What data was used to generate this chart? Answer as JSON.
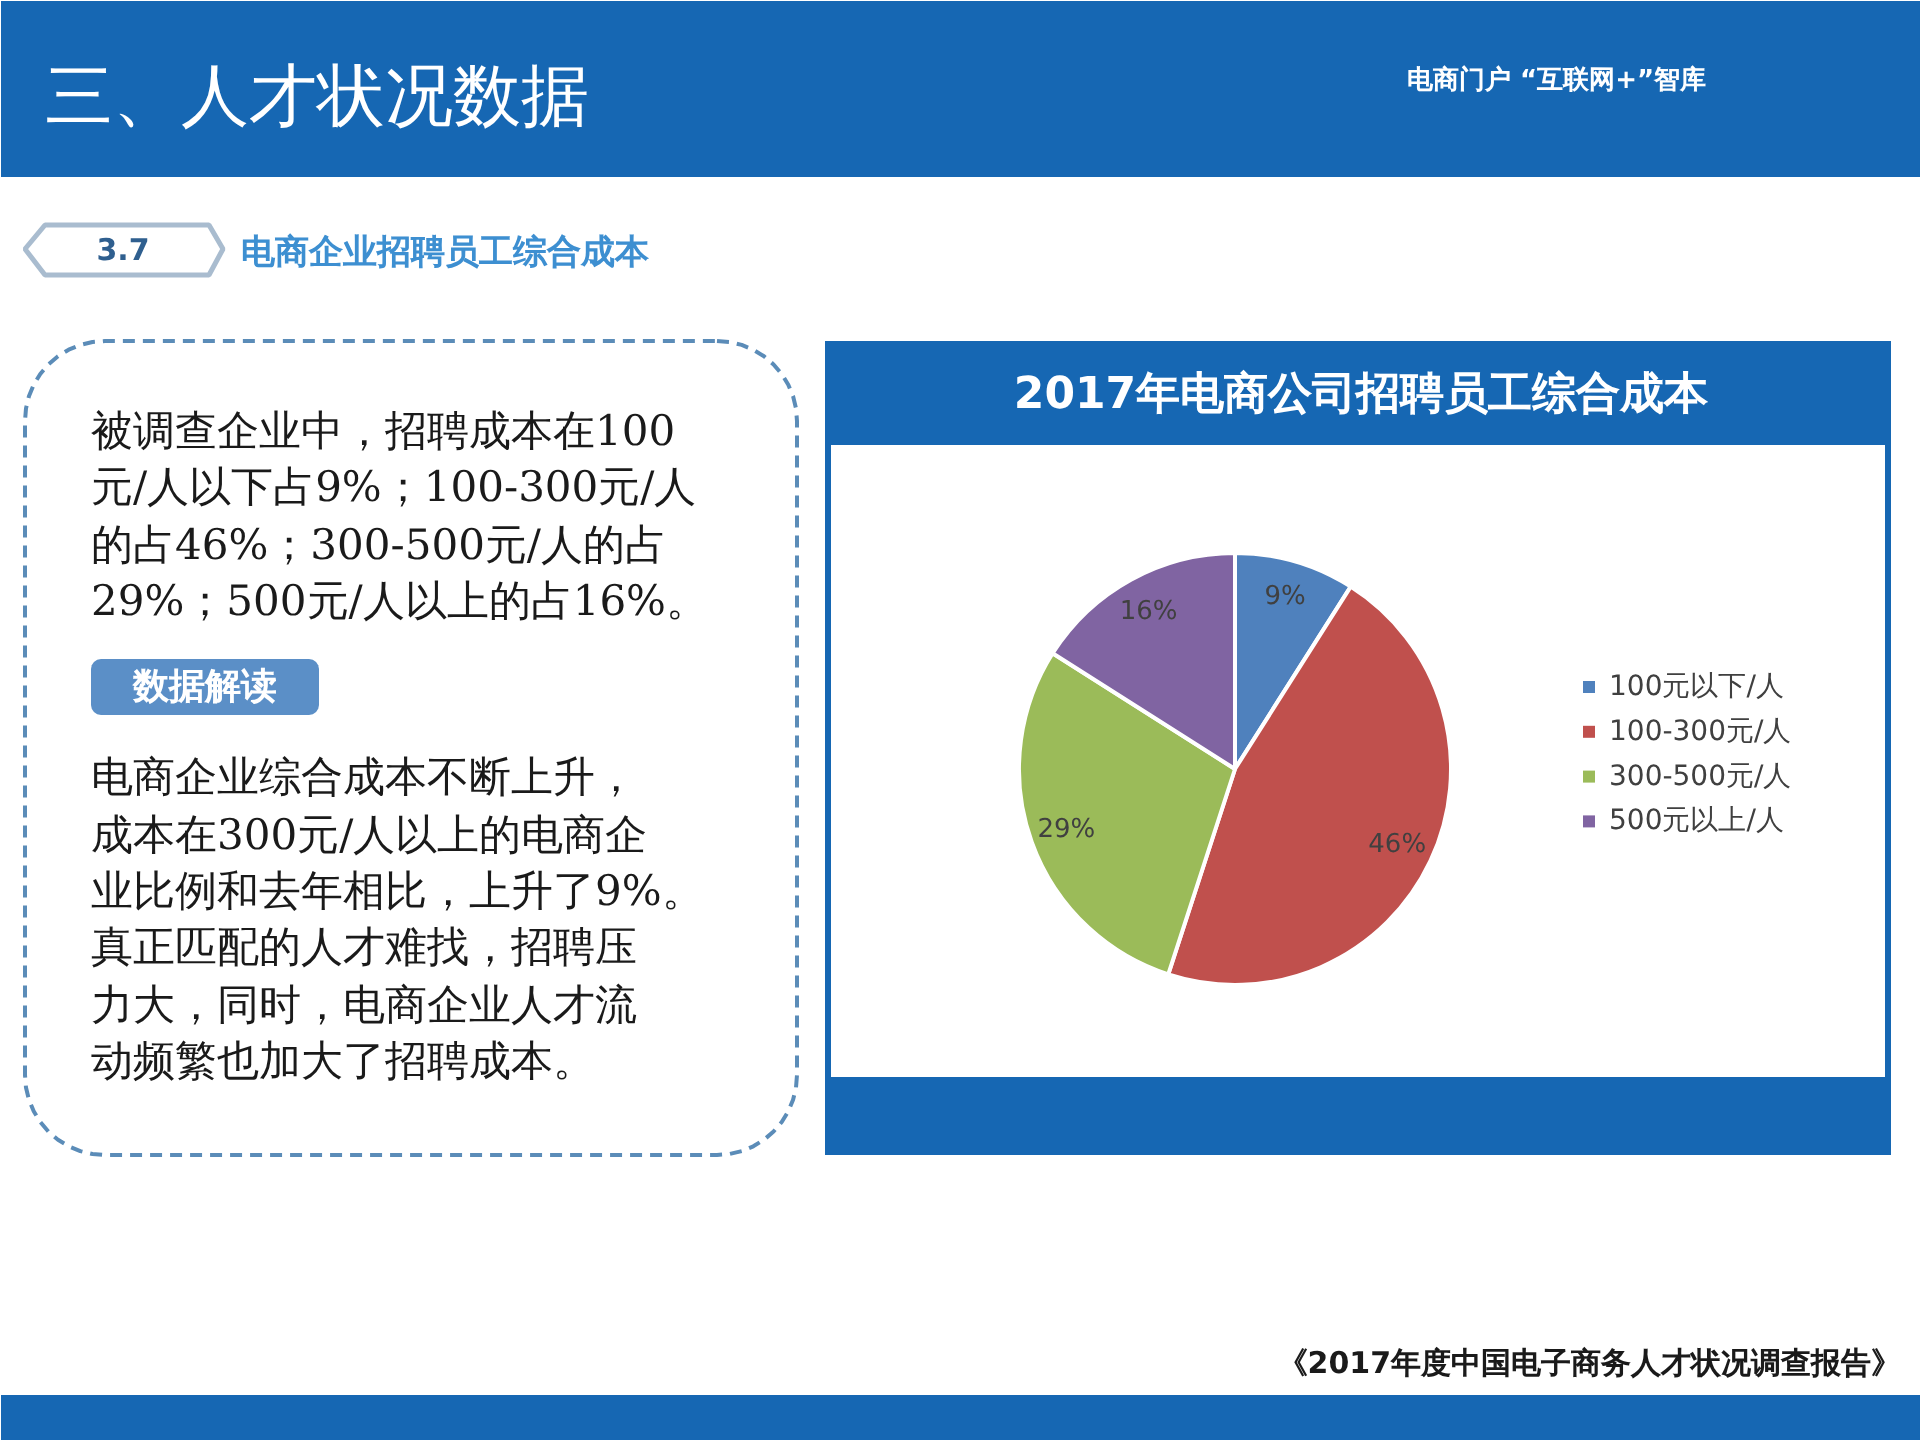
{
  "chart_data": {
    "type": "pie",
    "title": "2017年电商公司招聘员工综合成本",
    "categories": [
      "100元以下/人",
      "100-300元/人",
      "300-500元/人",
      "500元以上/人"
    ],
    "values": [
      9,
      46,
      29,
      16
    ],
    "colors": [
      "#4f81bd",
      "#c0504d",
      "#9bbb59",
      "#8064a2"
    ],
    "value_labels": [
      "9%",
      "46%",
      "29%",
      "16%"
    ],
    "legend": "right",
    "annotations": [
      "三、人才状况数据",
      "电商门户 “互联网+”智库",
      "3.7",
      "电商企业招聘员工综合成本",
      "被调查企业中，招聘成本在100",
      "元/人以下占9%；100-300元/人",
      "的占46%；300-500元/人的占",
      "29%；500元/人以上的占16%。",
      "数据解读",
      "电商企业综合成本不断上升，",
      "成本在300元/人以上的电商企",
      "业比例和去年相比，上升了9%。",
      "真正匹配的人才难找，招聘压",
      "力大，同时，电商企业人才流",
      "动频繁也加大了招聘成本。",
      "《2017年度中国电子商务人才状况调查报告》"
    ]
  }
}
